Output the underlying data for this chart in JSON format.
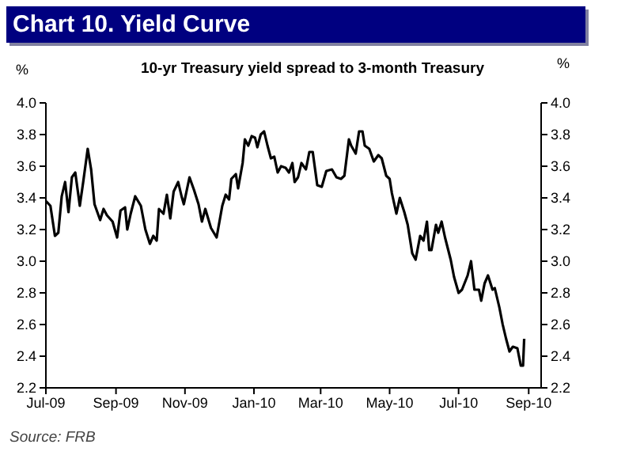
{
  "chart_data": {
    "type": "line",
    "title": "Chart 10.  Yield Curve",
    "subtitle": "10-yr Treasury yield spread to 3-month Treasury",
    "ylabel": "%",
    "y2label": "%",
    "annotations": [
      "Source: FRB"
    ],
    "xlim": [
      "2009-07-01",
      "2010-09-12"
    ],
    "xticks": [
      {
        "value": "2009-07-01",
        "label": "Jul-09"
      },
      {
        "value": "2009-09-01",
        "label": "Sep-09"
      },
      {
        "value": "2009-11-01",
        "label": "Nov-09"
      },
      {
        "value": "2010-01-01",
        "label": "Jan-10"
      },
      {
        "value": "2010-03-01",
        "label": "Mar-10"
      },
      {
        "value": "2010-05-01",
        "label": "May-10"
      },
      {
        "value": "2010-07-01",
        "label": "Jul-10"
      },
      {
        "value": "2010-09-01",
        "label": "Sep-10"
      }
    ],
    "ylim": [
      2.2,
      4.0
    ],
    "yticks": [
      2.2,
      2.4,
      2.6,
      2.8,
      {
        "value": 3,
        "label": "3.0"
      },
      3.2,
      3.4,
      3.6,
      3.8,
      {
        "value": 4,
        "label": "4.0"
      }
    ],
    "y2lim": [
      2.2,
      4.0
    ],
    "y2ticks": [
      2.2,
      2.4,
      2.6,
      2.8,
      {
        "value": 3,
        "label": "3.0"
      },
      3.2,
      3.4,
      3.6,
      3.8,
      {
        "value": 4,
        "label": "4.0"
      }
    ],
    "grid": false,
    "legend": false,
    "marker": "none",
    "line_style": "solid",
    "x": [
      "2009-07-01",
      "2009-07-05",
      "2009-07-09",
      "2009-07-12",
      "2009-07-15",
      "2009-07-18",
      "2009-07-21",
      "2009-07-24",
      "2009-07-27",
      "2009-07-31",
      "2009-08-03",
      "2009-08-07",
      "2009-08-10",
      "2009-08-13",
      "2009-08-18",
      "2009-08-21",
      "2009-08-24",
      "2009-08-29",
      "2009-09-02",
      "2009-09-05",
      "2009-09-09",
      "2009-09-11",
      "2009-09-14",
      "2009-09-18",
      "2009-09-23",
      "2009-09-27",
      "2009-10-01",
      "2009-10-04",
      "2009-10-07",
      "2009-10-09",
      "2009-10-13",
      "2009-10-16",
      "2009-10-19",
      "2009-10-22",
      "2009-10-26",
      "2009-10-29",
      "2009-10-31",
      "2009-11-05",
      "2009-11-09",
      "2009-11-13",
      "2009-11-16",
      "2009-11-19",
      "2009-11-24",
      "2009-11-29",
      "2009-12-04",
      "2009-12-07",
      "2009-12-10",
      "2009-12-12",
      "2009-12-16",
      "2009-12-18",
      "2009-12-22",
      "2009-12-24",
      "2009-12-27",
      "2009-12-30",
      "2010-01-02",
      "2010-01-04",
      "2010-01-07",
      "2010-01-10",
      "2010-01-13",
      "2010-01-16",
      "2010-01-19",
      "2010-01-22",
      "2010-01-25",
      "2010-01-29",
      "2010-02-01",
      "2010-02-04",
      "2010-02-06",
      "2010-02-09",
      "2010-02-12",
      "2010-02-16",
      "2010-02-19",
      "2010-02-22",
      "2010-02-26",
      "2010-03-02",
      "2010-03-06",
      "2010-03-11",
      "2010-03-15",
      "2010-03-19",
      "2010-03-22",
      "2010-03-26",
      "2010-03-28",
      "2010-04-01",
      "2010-04-04",
      "2010-04-07",
      "2010-04-09",
      "2010-04-13",
      "2010-04-17",
      "2010-04-21",
      "2010-04-24",
      "2010-04-28",
      "2010-05-01",
      "2010-05-03",
      "2010-05-07",
      "2010-05-10",
      "2010-05-14",
      "2010-05-17",
      "2010-05-21",
      "2010-05-24",
      "2010-05-28",
      "2010-05-31",
      "2010-06-03",
      "2010-06-05",
      "2010-06-07",
      "2010-06-11",
      "2010-06-13",
      "2010-06-16",
      "2010-06-19",
      "2010-06-24",
      "2010-06-27",
      "2010-07-01",
      "2010-07-04",
      "2010-07-09",
      "2010-07-12",
      "2010-07-15",
      "2010-07-19",
      "2010-07-21",
      "2010-07-24",
      "2010-07-27",
      "2010-07-31",
      "2010-08-02",
      "2010-08-06",
      "2010-08-09",
      "2010-08-12",
      "2010-08-15",
      "2010-08-18",
      "2010-08-22",
      "2010-08-25",
      "2010-08-27",
      "2010-08-28"
    ],
    "series": [
      {
        "color": "#000000",
        "values": [
          3.38,
          3.35,
          3.16,
          3.18,
          3.41,
          3.5,
          3.31,
          3.53,
          3.56,
          3.35,
          3.5,
          3.71,
          3.58,
          3.36,
          3.26,
          3.33,
          3.29,
          3.25,
          3.15,
          3.32,
          3.34,
          3.2,
          3.3,
          3.41,
          3.35,
          3.2,
          3.11,
          3.16,
          3.13,
          3.33,
          3.3,
          3.42,
          3.27,
          3.44,
          3.5,
          3.41,
          3.36,
          3.53,
          3.45,
          3.36,
          3.25,
          3.33,
          3.21,
          3.15,
          3.35,
          3.42,
          3.39,
          3.52,
          3.55,
          3.46,
          3.62,
          3.77,
          3.73,
          3.79,
          3.78,
          3.72,
          3.8,
          3.82,
          3.73,
          3.65,
          3.66,
          3.56,
          3.6,
          3.59,
          3.56,
          3.62,
          3.5,
          3.53,
          3.62,
          3.58,
          3.69,
          3.69,
          3.48,
          3.47,
          3.57,
          3.58,
          3.53,
          3.52,
          3.54,
          3.77,
          3.73,
          3.68,
          3.82,
          3.82,
          3.73,
          3.71,
          3.63,
          3.67,
          3.65,
          3.54,
          3.52,
          3.43,
          3.3,
          3.4,
          3.31,
          3.23,
          3.05,
          3.01,
          3.16,
          3.13,
          3.25,
          3.07,
          3.07,
          3.23,
          3.18,
          3.25,
          3.15,
          3.01,
          2.9,
          2.8,
          2.82,
          2.91,
          3.0,
          2.82,
          2.82,
          2.75,
          2.86,
          2.91,
          2.82,
          2.83,
          2.71,
          2.6,
          2.51,
          2.43,
          2.46,
          2.45,
          2.34,
          2.34,
          2.51
        ]
      }
    ]
  }
}
